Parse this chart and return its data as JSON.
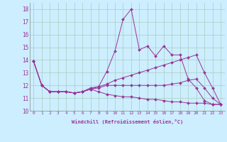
{
  "xlabel": "Windchill (Refroidissement éolien,°C)",
  "background_color": "#cceeff",
  "grid_color": "#aaccbb",
  "line_color": "#993399",
  "xmin": -0.5,
  "xmax": 23.5,
  "ymin": 10,
  "ymax": 18.5,
  "x_ticks": [
    0,
    1,
    2,
    3,
    4,
    5,
    6,
    7,
    8,
    9,
    10,
    11,
    12,
    13,
    14,
    15,
    16,
    17,
    18,
    19,
    20,
    21,
    22,
    23
  ],
  "y_ticks": [
    10,
    11,
    12,
    13,
    14,
    15,
    16,
    17,
    18
  ],
  "series": [
    [
      13.9,
      12.0,
      11.5,
      11.5,
      11.5,
      11.4,
      11.5,
      11.8,
      11.9,
      13.1,
      14.7,
      17.2,
      18.0,
      14.8,
      15.1,
      14.3,
      15.1,
      14.4,
      14.4,
      12.5,
      11.8,
      10.8,
      10.5,
      10.5
    ],
    [
      13.9,
      12.0,
      11.5,
      11.5,
      11.5,
      11.4,
      11.5,
      11.7,
      11.9,
      12.1,
      12.4,
      12.6,
      12.8,
      13.0,
      13.2,
      13.4,
      13.6,
      13.8,
      14.0,
      14.2,
      14.4,
      13.0,
      11.8,
      10.5
    ],
    [
      13.9,
      12.0,
      11.5,
      11.5,
      11.5,
      11.4,
      11.5,
      11.7,
      11.8,
      12.0,
      12.0,
      12.0,
      12.0,
      12.0,
      12.0,
      12.0,
      12.0,
      12.1,
      12.2,
      12.4,
      12.5,
      11.8,
      11.0,
      10.5
    ],
    [
      13.9,
      12.0,
      11.5,
      11.5,
      11.5,
      11.4,
      11.5,
      11.7,
      11.5,
      11.3,
      11.2,
      11.1,
      11.1,
      11.0,
      10.9,
      10.9,
      10.8,
      10.7,
      10.7,
      10.6,
      10.6,
      10.6,
      10.5,
      10.5
    ]
  ]
}
